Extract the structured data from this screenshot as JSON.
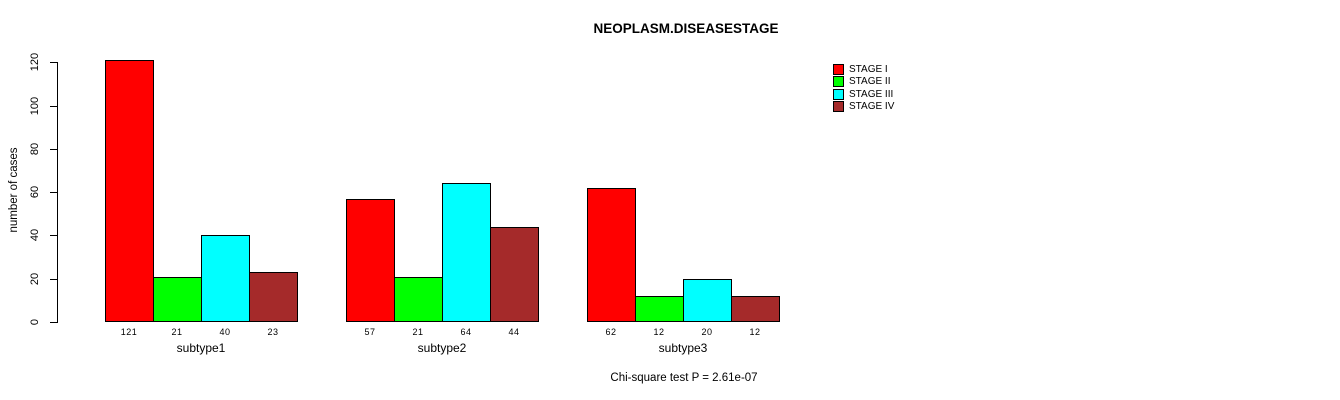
{
  "title": "NEOPLASM.DISEASESTAGE",
  "chart_data": {
    "type": "bar",
    "title": "NEOPLASM.DISEASESTAGE",
    "xlabel": "",
    "ylabel": "number of cases",
    "categories": [
      "subtype1",
      "subtype2",
      "subtype3"
    ],
    "series": [
      {
        "name": "STAGE I",
        "color": "#FF0000",
        "values": [
          121,
          57,
          62
        ]
      },
      {
        "name": "STAGE II",
        "color": "#00FF00",
        "values": [
          21,
          21,
          12
        ]
      },
      {
        "name": "STAGE III",
        "color": "#00FFFF",
        "values": [
          40,
          64,
          20
        ]
      },
      {
        "name": "STAGE IV",
        "color": "#A52A2A",
        "values": [
          23,
          44,
          12
        ]
      }
    ],
    "bar_value_labels": [
      [
        "121",
        "21",
        "40",
        "23"
      ],
      [
        "57",
        "21",
        "64",
        "44"
      ],
      [
        "62",
        "12",
        "20",
        "12"
      ]
    ],
    "yticks": [
      0,
      20,
      40,
      60,
      80,
      100,
      120
    ],
    "ylim": [
      0,
      120
    ],
    "grid": false,
    "legend_position": "top-right",
    "annotation": "Chi-square test P = 2.61e-07"
  }
}
